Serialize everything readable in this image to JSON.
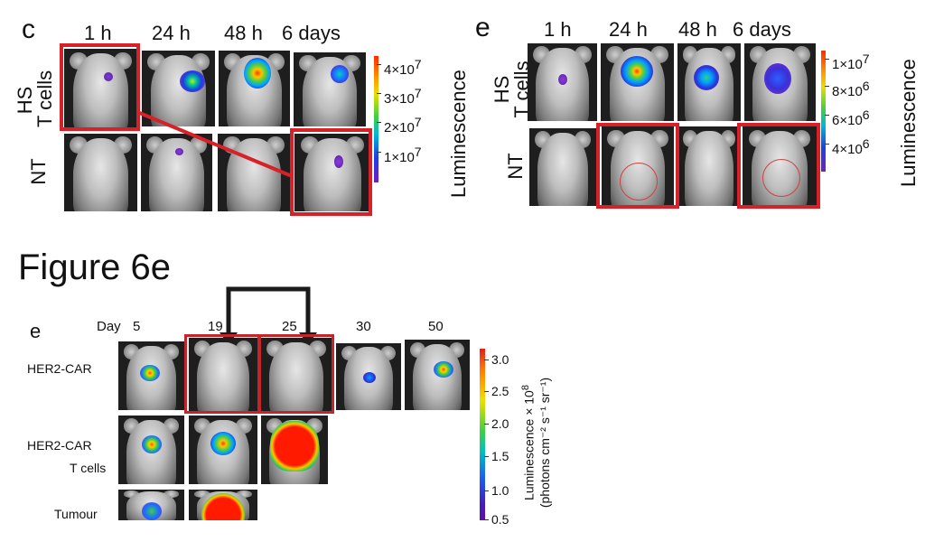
{
  "panel_c": {
    "letter": "c",
    "timepoints": [
      "1 h",
      "24 h",
      "48 h",
      "6 days"
    ],
    "row_hs": "HS\nT cells",
    "row_hs_1": "HS",
    "row_hs_2": "T cells",
    "row_nt": "NT",
    "scale_ticks": [
      "4×10",
      "3×10",
      "2×10",
      "1×10"
    ],
    "scale_exp": "7",
    "scale_label": "Luminescence"
  },
  "panel_e": {
    "letter": "e",
    "timepoints": [
      "1 h",
      "24 h",
      "48 h",
      "6 days"
    ],
    "row_hs_1": "HS",
    "row_hs_2": "T cells",
    "row_nt": "NT",
    "scale_ticks": [
      {
        "base": "1×10",
        "exp": "7"
      },
      {
        "base": "8×10",
        "exp": "6"
      },
      {
        "base": "6×10",
        "exp": "6"
      },
      {
        "base": "4×10",
        "exp": "6"
      }
    ],
    "scale_label": "Luminescence"
  },
  "figure_title": "Figure 6e",
  "panel_6e": {
    "letter": "e",
    "day_label": "Day",
    "days": [
      "5",
      "19",
      "25",
      "30",
      "50"
    ],
    "rows": [
      "HER2-CAR",
      "HER2-CAR",
      "T cells",
      "Tumour"
    ],
    "scale_ticks": [
      "3.0",
      "2.5",
      "2.0",
      "1.5",
      "1.0",
      "0.5"
    ],
    "scale_label_1": "Luminescence × 10",
    "scale_label_exp": "8",
    "scale_label_2": "(photons cm⁻² s⁻¹ sr⁻¹)"
  },
  "colors": {
    "highlight": "#d72027",
    "bracket": "#1a1a1a"
  }
}
